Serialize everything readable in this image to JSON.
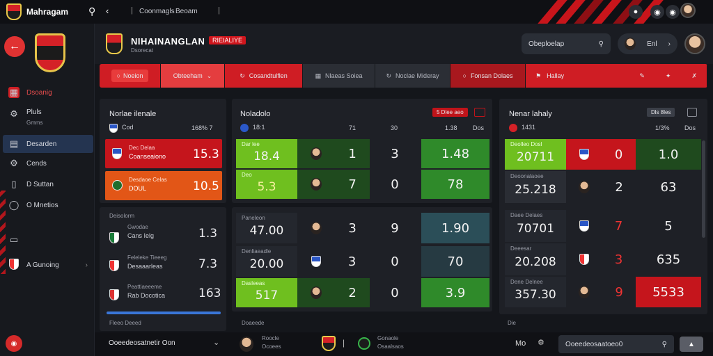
{
  "app": {
    "title": "Mahragam",
    "breadcrumb": "Coonmagls",
    "breadcrumb2": "Beoam"
  },
  "sidebar": {
    "items": [
      {
        "label": "Dsoanig",
        "icon": "card-icon"
      },
      {
        "label": "Pluls",
        "sublabel": "Gmms",
        "icon": "gear-icon"
      },
      {
        "label": "Desarden",
        "icon": "calendar-icon"
      },
      {
        "label": "Cends",
        "icon": "gear-icon"
      },
      {
        "label": "D Suttan",
        "icon": "tablet-icon"
      },
      {
        "label": "O Mnetios",
        "icon": "bulb-icon"
      },
      {
        "label": "",
        "icon": "monitor-icon"
      },
      {
        "label": "A Gunoing",
        "icon": "crest-icon"
      }
    ]
  },
  "header": {
    "title": "NIHAINANGLAN",
    "badge": "RIEIALIYE",
    "subtitle": "Dsorecat",
    "search_text": "Obeploelap",
    "user_label": "Enl"
  },
  "tabs": [
    {
      "label": "Noeion"
    },
    {
      "label": "Obteeham"
    },
    {
      "label": "Cosandtulflen"
    },
    {
      "label": "Nlaeas Soiea"
    },
    {
      "label": "Noclae Mideray"
    },
    {
      "label": "Fonsan Dolaes"
    },
    {
      "label": "Hallay"
    }
  ],
  "panel_left": {
    "title": "Norlae ilenale",
    "header_left": "Cod",
    "header_right": "168% 7",
    "rows": [
      {
        "l1": "Dec Delaa",
        "l2": "Coanseaiono",
        "value": "15.3"
      },
      {
        "l1": "Desdaoe Celas",
        "l2": "DOUL",
        "value": "10.5"
      }
    ],
    "section_title": "Deisolorm",
    "list": [
      {
        "l1": "Gwodae",
        "l2": "Cans Ielg",
        "value": "1.3"
      },
      {
        "l1": "Feleleke Tieeeg",
        "l2": "Desaaarleas",
        "value": "7.3"
      },
      {
        "l1": "Peattiaeeeme",
        "l2": "Rab Docotica",
        "value": "163"
      }
    ],
    "footer": "Fleeo Deeed"
  },
  "panel_mid": {
    "title": "Noladolo",
    "header_left": "18:1",
    "col2": "71",
    "col3": "30",
    "col4": "1.38",
    "col5": "Dos",
    "btn1": "5 Dlee aeo",
    "rows_top": [
      {
        "label": "Dar lee",
        "v1": "18.4",
        "v2": "1",
        "v3": "3",
        "v4": "1.48"
      },
      {
        "label": "Deo",
        "v1": "5.3",
        "v2": "7",
        "v3": "0",
        "v4": "78"
      }
    ],
    "rows_bottom": [
      {
        "label": "Paneleon",
        "v1": "47.00",
        "v2": "3",
        "v3": "9",
        "v4": "1.90"
      },
      {
        "label": "Denliaeadle",
        "v1": "20.00",
        "v2": "3",
        "v3": "0",
        "v4": "70"
      },
      {
        "label": "Dasleeas",
        "v1": "517",
        "v2": "2",
        "v3": "0",
        "v4": "3.9"
      }
    ],
    "footer": "Doaeede"
  },
  "panel_right": {
    "title": "Nenar lahaly",
    "header_left": "1431",
    "col_a": "1/3%",
    "col_b": "Dos",
    "btn1": "Dls 8les",
    "rows": [
      {
        "label": "Deolleo Dosl",
        "v1": "20711",
        "v2": "0",
        "v3": "1.0"
      },
      {
        "label": "Deoonalaoee",
        "v1": "25.218",
        "v2": "2",
        "v3": "63"
      },
      {
        "label": "Daee Delaes",
        "v1": "70701",
        "v2": "7",
        "v3": "5"
      },
      {
        "label": "Deeesar",
        "v1": "20.208",
        "v2": "3",
        "v3": "635"
      },
      {
        "label": "Dene Delnee",
        "v1": "357.30",
        "v2": "9",
        "v3": "5533"
      }
    ],
    "footer": "Die"
  },
  "bottom": {
    "left_text": "Ooeedeosatnetir Oon",
    "player1_l1": "Roocle",
    "player1_l2": "Ocoees",
    "player2_l1": "Gonaole",
    "player2_l2": "Osaalsaos",
    "mid_right": "Mo",
    "search_text": "Ooeedeosaatoeo0"
  }
}
